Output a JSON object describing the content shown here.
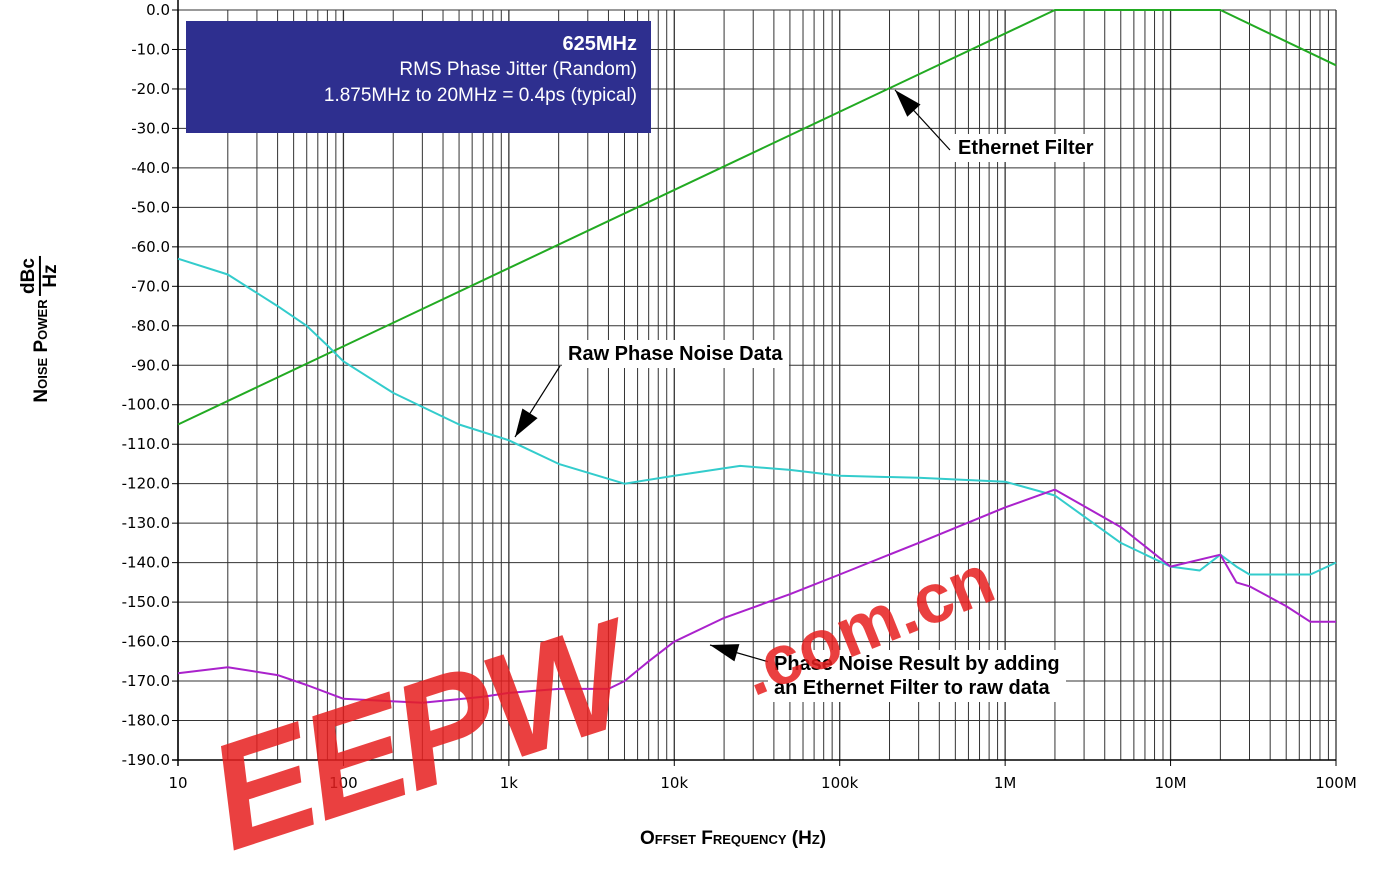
{
  "chart_data": {
    "type": "line",
    "xscale": "log",
    "xlim": [
      10,
      100000000
    ],
    "ylim": [
      -190,
      0
    ],
    "xlabel": "Offset Frequency (Hz)",
    "ylabel": "Noise Power",
    "yunit_num": "dBc",
    "yunit_den": "Hz",
    "x_ticks": [
      10,
      100,
      1000,
      10000,
      100000,
      1000000,
      10000000,
      100000000
    ],
    "x_tick_labels": [
      "10",
      "100",
      "1k",
      "10k",
      "100k",
      "1M",
      "10M",
      "100M"
    ],
    "y_ticks": [
      0,
      -10,
      -20,
      -30,
      -40,
      -50,
      -60,
      -70,
      -80,
      -90,
      -100,
      -110,
      -120,
      -130,
      -140,
      -150,
      -160,
      -170,
      -180,
      -190
    ],
    "y_tick_labels": [
      "0.0",
      "-10.0",
      "-20.0",
      "-30.0",
      "-40.0",
      "-50.0",
      "-60.0",
      "-70.0",
      "-80.0",
      "-90.0",
      "-100.0",
      "-110.0",
      "-120.0",
      "-130.0",
      "-140.0",
      "-150.0",
      "-160.0",
      "-170.0",
      "-180.0",
      "-190.0"
    ],
    "grid": true,
    "series": [
      {
        "color": "#22aa22",
        "x": [
          10,
          2000000,
          20000000,
          100000000
        ],
        "y": [
          -105,
          0,
          0,
          -14
        ]
      },
      {
        "color": "#33cccc",
        "x": [
          10,
          20,
          40,
          60,
          80,
          100,
          200,
          500,
          1000,
          2000,
          5000,
          10000,
          25000,
          50000,
          100000,
          300000,
          1000000,
          2000000,
          5000000,
          10000000,
          15000000,
          20000000,
          25000000,
          30000000,
          50000000,
          70000000,
          100000000
        ],
        "y": [
          -63,
          -67,
          -75,
          -80,
          -85,
          -89,
          -97,
          -105,
          -109,
          -115,
          -120,
          -118,
          -115.5,
          -116.5,
          -118,
          -118.5,
          -119.5,
          -123,
          -135,
          -141,
          -142,
          -138,
          -141,
          -143,
          -143,
          -143,
          -140
        ]
      },
      {
        "color": "#aa22cc",
        "x": [
          10,
          20,
          40,
          60,
          100,
          300,
          700,
          1000,
          2000,
          4000,
          5000,
          7000,
          10000,
          20000,
          50000,
          100000,
          300000,
          1000000,
          2000000,
          5000000,
          10000000,
          20000000,
          25000000,
          30000000,
          50000000,
          70000000,
          100000000
        ],
        "y": [
          -168,
          -166.5,
          -168.5,
          -171,
          -174.5,
          -175.5,
          -174,
          -173,
          -172,
          -172,
          -170,
          -165,
          -160,
          -154,
          -148,
          -143,
          -135,
          -126,
          -121.5,
          -131,
          -141,
          -138,
          -145,
          -146,
          -151,
          -155,
          -155
        ]
      }
    ],
    "annotations": {
      "box_line1": "625MHz",
      "box_line2": "RMS Phase Jitter (Random)",
      "box_line3": "1.875MHz to 20MHz = 0.4ps (typical)",
      "ethernet_filter": "Ethernet Filter",
      "raw_phase_noise": "Raw Phase Noise Data",
      "result_line1": "Phase Noise Result by adding",
      "result_line2": "an Ethernet Filter to raw data"
    },
    "watermark": {
      "text1": "EEPW",
      "text2": ".com.cn",
      "color": "#e61e1e"
    }
  }
}
